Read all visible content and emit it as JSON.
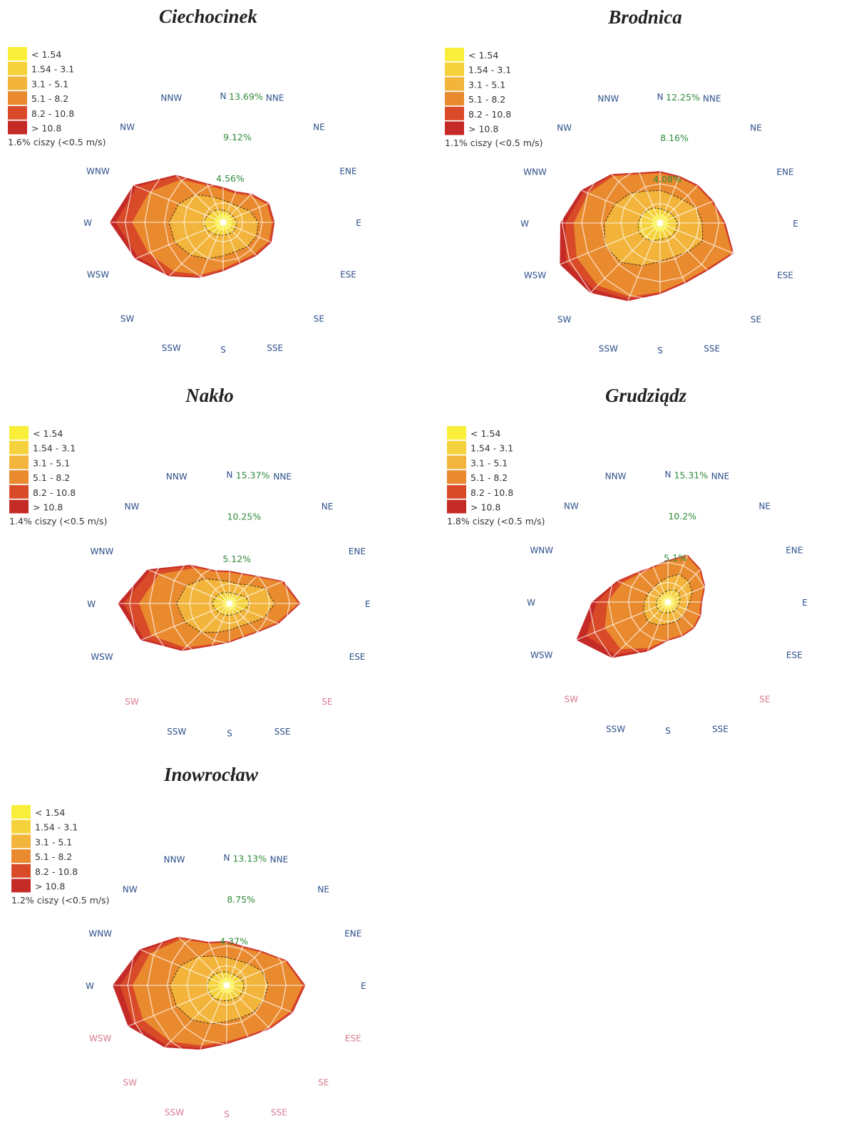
{
  "chart_data": {
    "type": "wind-rose",
    "directions": [
      "N",
      "NNE",
      "NE",
      "ENE",
      "E",
      "ESE",
      "SE",
      "SSE",
      "S",
      "SSW",
      "SW",
      "WSW",
      "W",
      "WNW",
      "NW",
      "NNW"
    ],
    "speed_classes": [
      "< 1.54",
      "1.54 - 3.1",
      "3.1 - 5.1",
      "5.1 - 8.2",
      "8.2 - 10.8",
      "> 10.8"
    ],
    "class_colors": [
      "#f9ee3a",
      "#f5d23c",
      "#f2b43a",
      "#ea8a2e",
      "#d94a28",
      "#c42a26"
    ],
    "roses": [
      {
        "title": "Ciechocinek",
        "calm": "1.6% ciszy (<0.5 m/s)",
        "ring_labels": [
          "13.69%",
          "9.12%",
          "4.56%"
        ],
        "max": 13.69,
        "cumulative": [
          [
            1.0,
            1.0,
            1.0,
            1.0,
            1.0,
            1.0,
            1.0,
            1.0,
            1.0,
            1.0,
            1.0,
            1.0,
            1.0,
            1.0,
            1.0,
            1.0
          ],
          [
            1.4,
            1.3,
            1.3,
            1.4,
            1.6,
            1.6,
            1.6,
            1.5,
            1.5,
            1.6,
            1.8,
            2.1,
            2.3,
            2.0,
            1.8,
            1.6
          ],
          [
            2.6,
            2.4,
            2.6,
            3.4,
            4.1,
            4.2,
            4.0,
            3.7,
            3.9,
            4.6,
            5.4,
            6.1,
            6.3,
            5.6,
            4.6,
            3.2
          ],
          [
            3.8,
            3.6,
            4.4,
            5.5,
            5.7,
            5.8,
            5.2,
            4.9,
            5.4,
            6.6,
            8.1,
            9.4,
            10.6,
            9.3,
            7.0,
            4.6
          ],
          [
            4.0,
            3.8,
            4.6,
            5.7,
            5.9,
            6.0,
            5.4,
            5.1,
            5.6,
            6.9,
            8.7,
            10.7,
            12.5,
            10.9,
            7.6,
            4.8
          ],
          [
            4.1,
            3.9,
            4.7,
            5.8,
            6.0,
            6.1,
            5.5,
            5.2,
            5.7,
            7.0,
            8.9,
            11.1,
            13.2,
            11.3,
            7.8,
            4.9
          ]
        ]
      },
      {
        "title": "Brodnica",
        "calm": "1.1% ciszy (<0.5 m/s)",
        "ring_labels": [
          "12.25%",
          "8.16%",
          "4.08%"
        ],
        "max": 12.25,
        "cumulative": [
          [
            0.9,
            0.9,
            0.9,
            0.9,
            0.9,
            0.9,
            0.9,
            0.9,
            0.9,
            0.9,
            0.9,
            0.9,
            0.9,
            0.9,
            0.9,
            0.9
          ],
          [
            1.5,
            1.4,
            1.5,
            1.6,
            1.8,
            1.8,
            1.8,
            1.7,
            1.7,
            2.0,
            2.3,
            2.4,
            2.3,
            2.1,
            1.9,
            1.7
          ],
          [
            3.4,
            3.2,
            3.4,
            4.1,
            4.4,
            4.8,
            4.2,
            3.8,
            4.0,
            4.8,
            5.8,
            6.2,
            5.8,
            5.1,
            4.4,
            3.6
          ],
          [
            5.2,
            5.1,
            5.4,
            5.8,
            6.6,
            8.1,
            6.8,
            6.6,
            7.2,
            8.3,
            9.2,
            9.4,
            9.0,
            8.1,
            6.9,
            5.5
          ],
          [
            5.3,
            5.2,
            5.5,
            5.9,
            6.7,
            8.2,
            6.9,
            6.7,
            7.3,
            8.6,
            9.8,
            10.6,
            9.9,
            8.6,
            7.1,
            5.6
          ],
          [
            5.4,
            5.3,
            5.6,
            6.0,
            6.8,
            8.3,
            7.0,
            6.8,
            7.4,
            8.8,
            10.3,
            11.3,
            10.4,
            8.9,
            7.2,
            5.7
          ]
        ]
      },
      {
        "title": "Nakło",
        "calm": "1.4% ciszy (<0.5 m/s)",
        "ring_labels": [
          "15.37%",
          "10.25%",
          "5.12%"
        ],
        "max": 15.37,
        "cumulative": [
          [
            0.9,
            0.9,
            0.9,
            0.9,
            0.9,
            0.9,
            0.9,
            0.9,
            0.9,
            0.9,
            0.9,
            0.9,
            0.9,
            0.9,
            0.9,
            0.9
          ],
          [
            1.4,
            1.4,
            1.6,
            2.2,
            2.6,
            2.1,
            1.6,
            1.5,
            1.5,
            1.6,
            1.8,
            2.0,
            2.2,
            2.0,
            1.8,
            1.5
          ],
          [
            2.8,
            2.7,
            3.4,
            5.0,
            5.8,
            4.8,
            3.6,
            3.2,
            3.4,
            4.0,
            5.2,
            6.2,
            6.8,
            6.0,
            4.5,
            3.2
          ],
          [
            4.0,
            4.0,
            4.8,
            7.2,
            8.8,
            6.5,
            5.0,
            4.5,
            4.8,
            5.6,
            8.0,
            10.8,
            11.6,
            9.8,
            6.4,
            4.4
          ],
          [
            4.1,
            4.1,
            4.9,
            7.4,
            9.0,
            6.7,
            5.1,
            4.6,
            4.9,
            5.8,
            8.4,
            11.9,
            13.6,
            11.0,
            6.8,
            4.5
          ],
          [
            4.2,
            4.2,
            5.0,
            7.5,
            9.1,
            6.8,
            5.2,
            4.7,
            5.0,
            5.9,
            8.6,
            12.3,
            14.3,
            11.4,
            7.0,
            4.6
          ]
        ]
      },
      {
        "title": "Grudziądz",
        "calm": "1.8% ciszy (<0.5 m/s)",
        "ring_labels": [
          "15.31%",
          "10.2%",
          "5.1%"
        ],
        "max": 15.31,
        "cumulative": [
          [
            0.9,
            0.9,
            0.9,
            0.9,
            0.9,
            0.9,
            0.9,
            0.9,
            0.9,
            0.9,
            0.9,
            0.9,
            0.9,
            0.9,
            0.9,
            0.9
          ],
          [
            1.5,
            1.7,
            1.9,
            1.7,
            1.5,
            1.4,
            1.4,
            1.4,
            1.4,
            1.5,
            1.6,
            1.6,
            1.5,
            1.4,
            1.3,
            1.3
          ],
          [
            3.2,
            3.9,
            3.8,
            3.4,
            2.8,
            2.6,
            2.6,
            2.7,
            2.8,
            3.2,
            3.6,
            3.4,
            3.1,
            2.8,
            2.6,
            2.8
          ],
          [
            5.2,
            6.4,
            5.8,
            5.0,
            4.2,
            4.4,
            4.6,
            4.6,
            4.8,
            6.4,
            8.6,
            8.8,
            7.8,
            6.4,
            5.2,
            4.8
          ],
          [
            5.3,
            6.5,
            5.9,
            5.1,
            4.3,
            4.5,
            4.7,
            4.7,
            4.9,
            6.7,
            9.6,
            11.4,
            9.2,
            6.9,
            5.4,
            4.9
          ],
          [
            5.4,
            6.6,
            6.0,
            5.2,
            4.4,
            4.6,
            4.8,
            4.8,
            5.0,
            6.9,
            10.2,
            12.8,
            9.8,
            7.1,
            5.5,
            5.0
          ]
        ]
      },
      {
        "title": "Inowrocław",
        "calm": "1.2% ciszy (<0.5 m/s)",
        "ring_labels": [
          "13.13%",
          "8.75%",
          "4.37%"
        ],
        "max": 13.13,
        "cumulative": [
          [
            0.9,
            0.9,
            0.9,
            0.9,
            0.9,
            0.9,
            0.9,
            0.9,
            0.9,
            0.9,
            0.9,
            0.9,
            0.9,
            0.9,
            0.9,
            0.9
          ],
          [
            1.5,
            1.4,
            1.5,
            1.8,
            1.9,
            1.9,
            1.8,
            1.7,
            1.7,
            1.8,
            2.0,
            2.1,
            2.2,
            2.0,
            1.8,
            1.6
          ],
          [
            3.1,
            3.0,
            3.4,
            4.2,
            4.6,
            4.4,
            4.2,
            3.9,
            4.0,
            4.6,
            5.4,
            6.0,
            6.3,
            5.6,
            4.5,
            3.5
          ],
          [
            4.7,
            4.5,
            5.2,
            7.0,
            8.4,
            7.6,
            6.6,
            6.0,
            6.2,
            7.2,
            8.8,
            10.0,
            10.4,
            9.2,
            7.2,
            5.0
          ],
          [
            4.8,
            4.6,
            5.3,
            7.1,
            8.6,
            7.8,
            6.7,
            6.1,
            6.4,
            7.5,
            9.4,
            11.2,
            11.8,
            10.0,
            7.5,
            5.1
          ],
          [
            4.9,
            4.7,
            5.4,
            7.2,
            8.7,
            7.9,
            6.8,
            6.2,
            6.5,
            7.7,
            9.7,
            11.8,
            12.6,
            10.4,
            7.6,
            5.2
          ]
        ]
      }
    ]
  }
}
